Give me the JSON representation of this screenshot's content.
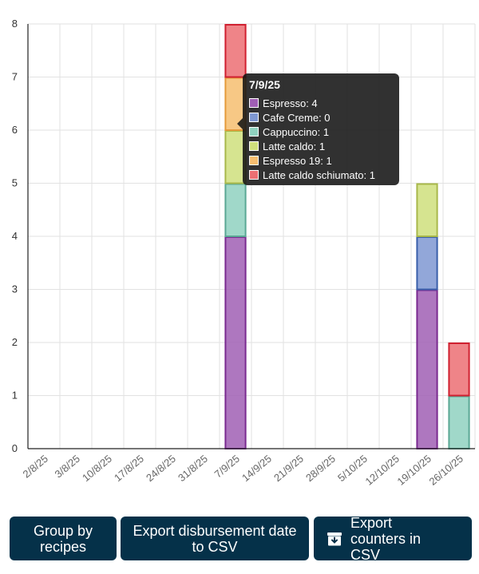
{
  "chart_data": {
    "type": "bar",
    "stacked": true,
    "categories": [
      "2/8/25",
      "3/8/25",
      "10/8/25",
      "17/8/25",
      "24/8/25",
      "31/8/25",
      "7/9/25",
      "14/9/25",
      "21/9/25",
      "28/9/25",
      "5/10/25",
      "12/10/25",
      "19/10/25",
      "26/10/25"
    ],
    "series": [
      {
        "name": "Espresso",
        "color": "#a05fb4",
        "values": [
          0,
          0,
          0,
          0,
          0,
          0,
          4,
          0,
          0,
          0,
          0,
          0,
          3,
          0
        ]
      },
      {
        "name": "Cafe Creme",
        "color": "#7f98d2",
        "values": [
          0,
          0,
          0,
          0,
          0,
          0,
          0,
          0,
          0,
          0,
          0,
          0,
          1,
          0
        ]
      },
      {
        "name": "Cappuccino",
        "color": "#8fd1bf",
        "values": [
          0,
          0,
          0,
          0,
          0,
          0,
          1,
          0,
          0,
          0,
          0,
          0,
          0,
          1
        ]
      },
      {
        "name": "Latte caldo",
        "color": "#cfdf7c",
        "values": [
          0,
          0,
          0,
          0,
          0,
          0,
          1,
          0,
          0,
          0,
          0,
          0,
          1,
          0
        ]
      },
      {
        "name": "Espresso 19",
        "color": "#f6be70",
        "values": [
          0,
          0,
          0,
          0,
          0,
          0,
          1,
          0,
          0,
          0,
          0,
          0,
          0,
          0
        ]
      },
      {
        "name": "Latte caldo schiumato",
        "color": "#ec6f73",
        "values": [
          0,
          0,
          0,
          0,
          0,
          0,
          1,
          0,
          0,
          0,
          0,
          0,
          0,
          1
        ]
      }
    ],
    "border_colors": [
      "#7a2a90",
      "#3a5faa",
      "#5aa894",
      "#a8b84a",
      "#e49a3a",
      "#d02030"
    ],
    "ylim": [
      0,
      8
    ],
    "yticks": [
      "0",
      "1",
      "2",
      "3",
      "4",
      "5",
      "6",
      "7",
      "8"
    ],
    "grid": true,
    "title": "",
    "xlabel": "",
    "ylabel": ""
  },
  "tooltip": {
    "title": "7/9/25",
    "rows": [
      {
        "text": "Espresso: 4",
        "color": "#a05fb4"
      },
      {
        "text": "Cafe Creme: 0",
        "color": "#7f98d2"
      },
      {
        "text": "Cappuccino: 1",
        "color": "#8fd1bf"
      },
      {
        "text": "Latte caldo: 1",
        "color": "#cfdf7c"
      },
      {
        "text": "Espresso 19: 1",
        "color": "#f6be70"
      },
      {
        "text": "Latte caldo schiumato: 1",
        "color": "#ec6f73"
      }
    ]
  },
  "buttons": {
    "group_label": "Group by recipes",
    "export_date_label": "Export disbursement date to CSV",
    "export_counters_label": "Export counters in CSV",
    "export_counters_icon": "archive-download-icon",
    "background": "#053149"
  }
}
